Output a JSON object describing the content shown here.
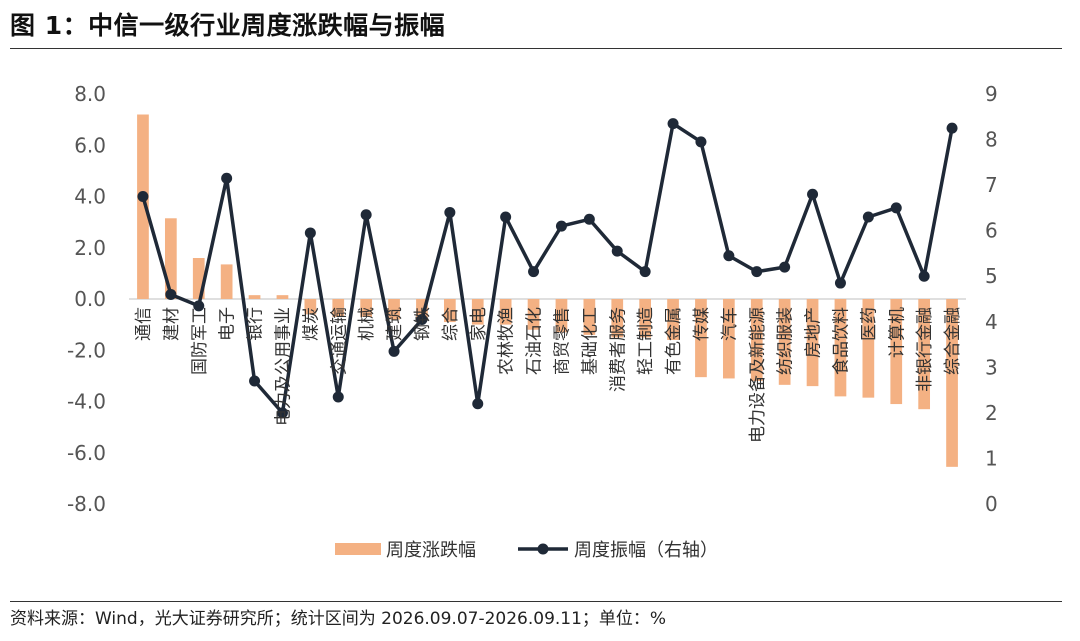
{
  "header": {
    "title": "图 1：中信一级行业周度涨跌幅与振幅"
  },
  "footer": {
    "source": "资料来源：Wind，光大证券研究所；统计区间为 2026.09.07-2026.09.11；单位：%"
  },
  "colors": {
    "bar": "#F4B183",
    "line": "#1F2937",
    "axis": "#BFBFBF"
  },
  "chart_data": {
    "type": "bar+line",
    "categories": [
      "通信",
      "建材",
      "国防军工",
      "电子",
      "银行",
      "电力及公用事业",
      "煤炭",
      "交通运输",
      "机械",
      "建筑",
      "钢铁",
      "综合",
      "家电",
      "农林牧渔",
      "石油石化",
      "商贸零售",
      "基础化工",
      "消费者服务",
      "轻工制造",
      "有色金属",
      "传媒",
      "汽车",
      "电力设备及新能源",
      "纺织服装",
      "房地产",
      "食品饮料",
      "医药",
      "计算机",
      "非银行金融",
      "综合金融"
    ],
    "series": [
      {
        "name": "周度涨跌幅",
        "axis": "left",
        "type": "bar",
        "values": [
          7.2,
          3.15,
          1.6,
          1.35,
          0.15,
          0.15,
          -0.6,
          -0.7,
          -0.7,
          -0.8,
          -0.8,
          -0.9,
          -1.0,
          -1.0,
          -1.2,
          -1.3,
          -1.4,
          -1.5,
          -1.5,
          -1.6,
          -3.05,
          -3.1,
          -3.2,
          -3.35,
          -3.4,
          -3.8,
          -3.85,
          -4.1,
          -4.3,
          -6.55
        ]
      },
      {
        "name": "周度振幅（右轴）",
        "axis": "right",
        "type": "line",
        "values": [
          6.75,
          4.6,
          4.35,
          7.15,
          2.7,
          2.0,
          5.95,
          2.35,
          6.35,
          3.35,
          4.05,
          6.4,
          2.2,
          6.3,
          5.1,
          6.1,
          6.25,
          5.55,
          5.1,
          8.35,
          7.95,
          5.45,
          5.1,
          5.2,
          6.8,
          4.85,
          6.3,
          6.5,
          5.0,
          8.25
        ]
      }
    ],
    "y_left": {
      "ylim": [
        -8,
        8
      ],
      "ticks": [
        "8.0",
        "6.0",
        "4.0",
        "2.0",
        "0.0",
        "-2.0",
        "-4.0",
        "-6.0",
        "-8.0"
      ]
    },
    "y_right": {
      "ylim": [
        0,
        9
      ],
      "ticks": [
        "9",
        "8",
        "7",
        "6",
        "5",
        "4",
        "3",
        "2",
        "1",
        "0"
      ]
    },
    "legend_position": "bottom-center",
    "grid": false
  }
}
